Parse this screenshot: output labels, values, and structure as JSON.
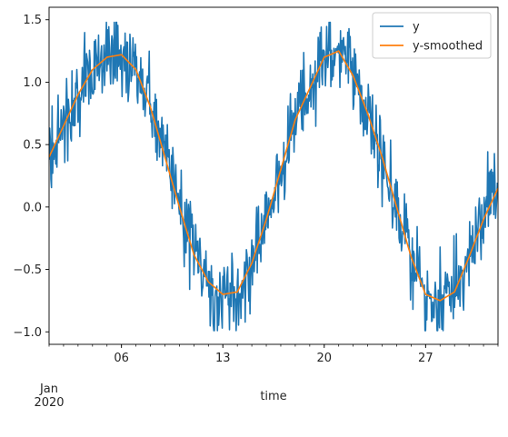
{
  "chart_data": {
    "type": "line",
    "xlabel": "time",
    "x_start": "2020-01-01 00:00",
    "x_end": "2020-01-31 23:00",
    "x_sampling": "hourly",
    "xlim": [
      "2020-01-01",
      "2020-02-01"
    ],
    "x_major_ticks": [
      {
        "date": "2020-01-06",
        "label": "06"
      },
      {
        "date": "2020-01-13",
        "label": "13"
      },
      {
        "date": "2020-01-20",
        "label": "20"
      },
      {
        "date": "2020-01-27",
        "label": "27"
      }
    ],
    "x_first_tick": {
      "date": "2020-01-01",
      "line1": "Jan",
      "line2": "2020"
    },
    "x_minor_ticks": "daily",
    "ylim": [
      -1.1,
      1.6
    ],
    "y_ticks": [
      -1.0,
      -0.5,
      0.0,
      0.5,
      1.0,
      1.5
    ],
    "y_tick_labels": [
      "−1.0",
      "−0.5",
      "0.0",
      "0.5",
      "1.0",
      "1.5"
    ],
    "grid": false,
    "legend_position": "upper right",
    "series": [
      {
        "name": "y",
        "color": "#1f77b4",
        "style": "noisy hourly samples around the smoothed curve, spread about ±0.25",
        "summary": {
          "min": -0.99,
          "max": 1.48
        }
      },
      {
        "name": "y-smoothed",
        "color": "#ff7f0e",
        "style": "daily values",
        "x": [
          "2020-01-01",
          "2020-01-02",
          "2020-01-03",
          "2020-01-04",
          "2020-01-05",
          "2020-01-06",
          "2020-01-07",
          "2020-01-08",
          "2020-01-09",
          "2020-01-10",
          "2020-01-11",
          "2020-01-12",
          "2020-01-13",
          "2020-01-14",
          "2020-01-15",
          "2020-01-16",
          "2020-01-17",
          "2020-01-18",
          "2020-01-19",
          "2020-01-20",
          "2020-01-21",
          "2020-01-22",
          "2020-01-23",
          "2020-01-24",
          "2020-01-25",
          "2020-01-26",
          "2020-01-27",
          "2020-01-28",
          "2020-01-29",
          "2020-01-30",
          "2020-01-31",
          "2020-02-01"
        ],
        "values": [
          0.4,
          0.65,
          0.9,
          1.1,
          1.2,
          1.22,
          1.1,
          0.8,
          0.4,
          0.0,
          -0.38,
          -0.6,
          -0.7,
          -0.68,
          -0.45,
          -0.1,
          0.3,
          0.7,
          0.95,
          1.2,
          1.25,
          1.05,
          0.75,
          0.4,
          0.0,
          -0.4,
          -0.7,
          -0.75,
          -0.68,
          -0.4,
          -0.1,
          0.15
        ]
      }
    ]
  }
}
